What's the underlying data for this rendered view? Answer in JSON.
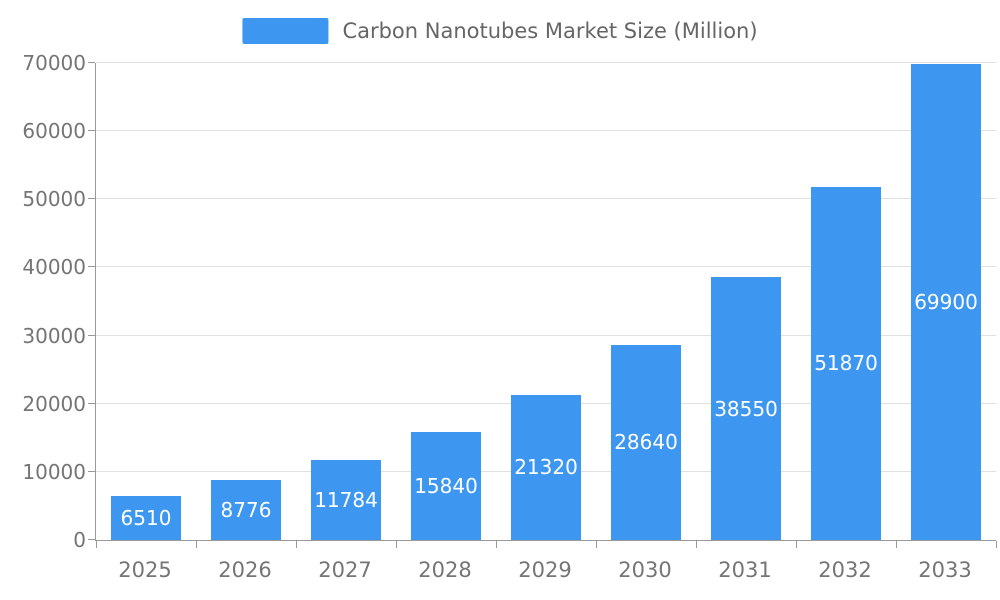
{
  "chart_data": {
    "type": "bar",
    "title": "Carbon Nanotubes Market Size (Million)",
    "categories": [
      "2025",
      "2026",
      "2027",
      "2028",
      "2029",
      "2030",
      "2031",
      "2032",
      "2033"
    ],
    "values": [
      6510,
      8776,
      11784,
      15840,
      21320,
      28640,
      38550,
      51870,
      69900
    ],
    "series": [
      {
        "name": "Carbon Nanotubes Market Size (Million)",
        "values": [
          6510,
          8776,
          11784,
          15840,
          21320,
          28640,
          38550,
          51870,
          69900
        ]
      }
    ],
    "xlabel": "",
    "ylabel": "",
    "ylim": [
      0,
      70000
    ],
    "ytick_step": 10000,
    "ytick_labels": [
      "0",
      "10000",
      "20000",
      "30000",
      "40000",
      "50000",
      "60000",
      "70000"
    ],
    "grid": "horizontal",
    "legend_position": "top-center",
    "bar_labels_visible": true
  },
  "colors": {
    "bar": "#3d97f0",
    "bar_label": "#ffffff",
    "axis_text": "#757575",
    "legend_text": "#666666",
    "gridline": "#e0e0e0",
    "axis_line": "#999999",
    "background": "#ffffff"
  }
}
